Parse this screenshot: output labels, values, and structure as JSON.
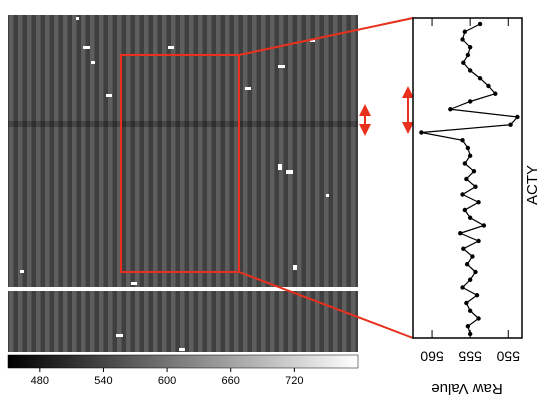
{
  "chart_data": [
    {
      "type": "colorbar",
      "xlim": [
        450,
        780
      ],
      "xticks": [
        480,
        540,
        600,
        660,
        720
      ]
    },
    {
      "type": "line",
      "xlabel": "Raw Value",
      "ylabel": "ACTY",
      "color": "#000000",
      "xlim": [
        562.5,
        548.2
      ],
      "xticks": [
        560,
        555,
        550
      ],
      "values": [
        553.7,
        555.7,
        556,
        555,
        555.3,
        555.9,
        555,
        553.7,
        552.6,
        551.7,
        555,
        557.6,
        548.8,
        549.7,
        561.4,
        556,
        555.3,
        555,
        555.7,
        554.5,
        555.5,
        554.3,
        556,
        553.9,
        555.7,
        555,
        553.2,
        556.3,
        553.9,
        555.9,
        554.7,
        555.4,
        554.3,
        555,
        556,
        554.1,
        555.5,
        555,
        553.9,
        555.3,
        555
      ]
    }
  ]
}
